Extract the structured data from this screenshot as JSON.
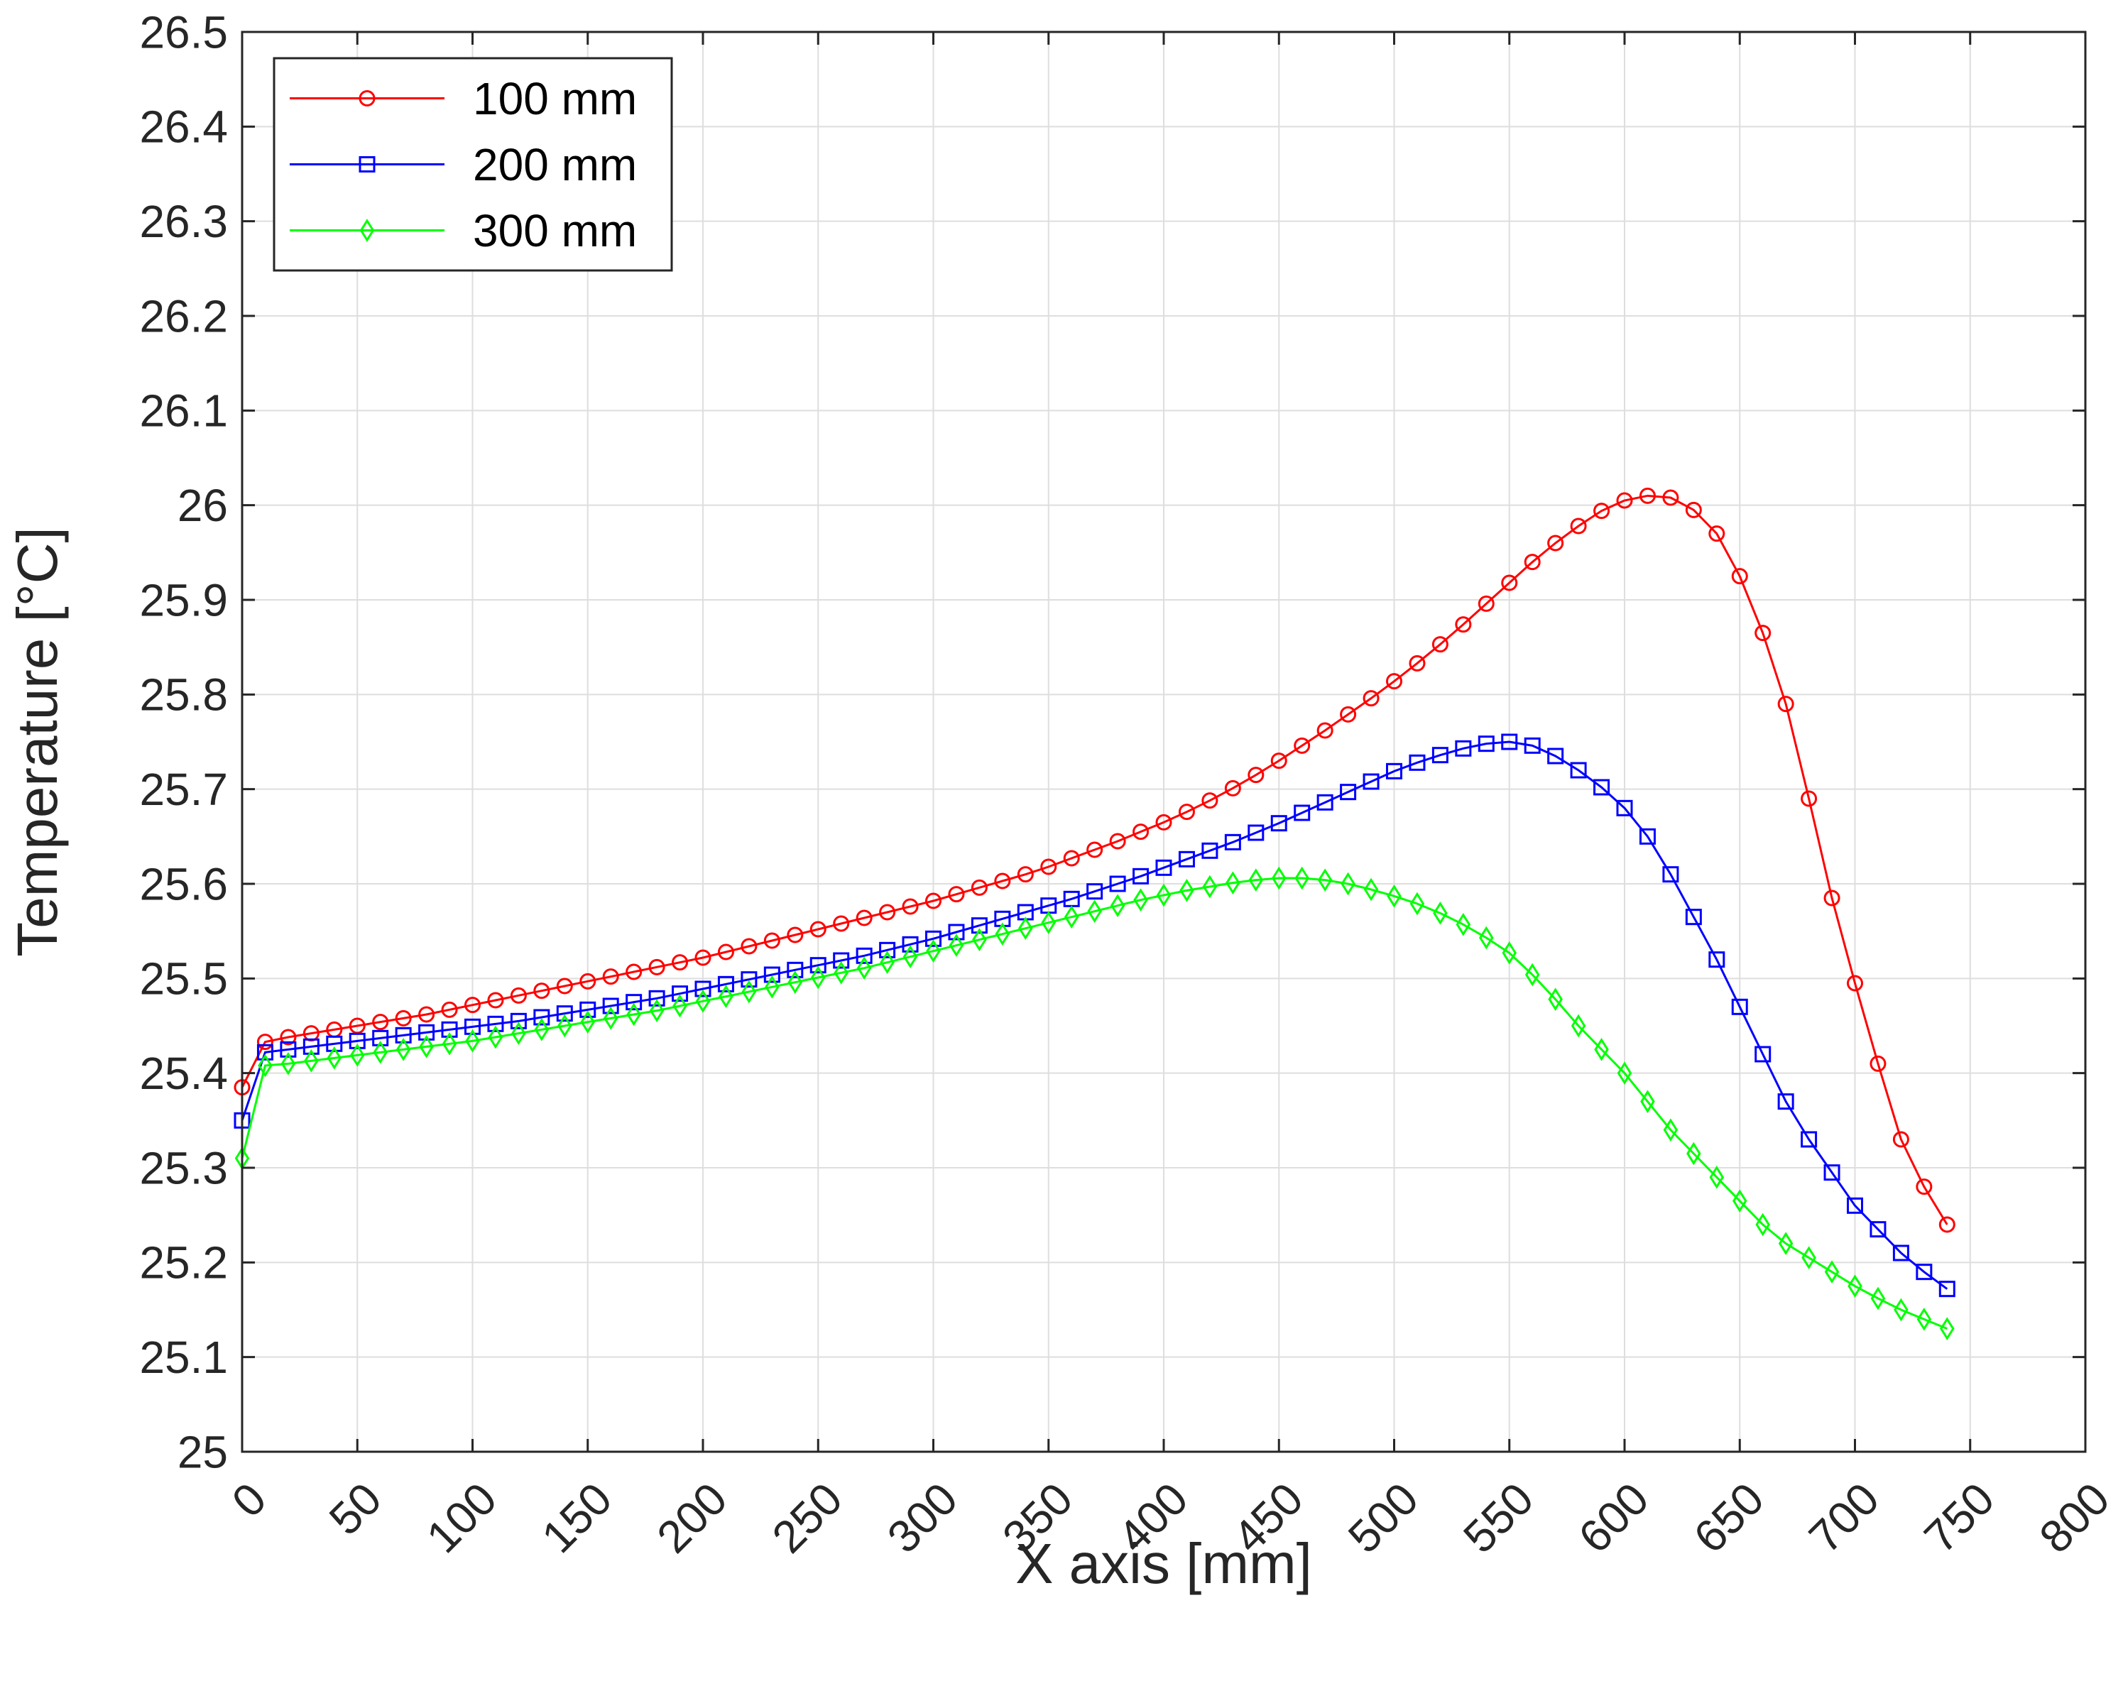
{
  "chart_data": {
    "type": "line",
    "title": "",
    "xlabel": "X axis [mm]",
    "ylabel": "Temperature [°C]",
    "xlim": [
      0,
      800
    ],
    "ylim": [
      25,
      26.5
    ],
    "xticks": [
      0,
      50,
      100,
      150,
      200,
      250,
      300,
      350,
      400,
      450,
      500,
      550,
      600,
      650,
      700,
      750,
      800
    ],
    "yticks": [
      25,
      25.1,
      25.2,
      25.3,
      25.4,
      25.5,
      25.6,
      25.7,
      25.8,
      25.9,
      26,
      26.1,
      26.2,
      26.3,
      26.4,
      26.5
    ],
    "grid": true,
    "legend_position": "top-left",
    "x": [
      0,
      10,
      20,
      30,
      40,
      50,
      60,
      70,
      80,
      90,
      100,
      110,
      120,
      130,
      140,
      150,
      160,
      170,
      180,
      190,
      200,
      210,
      220,
      230,
      240,
      250,
      260,
      270,
      280,
      290,
      300,
      310,
      320,
      330,
      340,
      350,
      360,
      370,
      380,
      390,
      400,
      410,
      420,
      430,
      440,
      450,
      460,
      470,
      480,
      490,
      500,
      510,
      520,
      530,
      540,
      550,
      560,
      570,
      580,
      590,
      600,
      610,
      620,
      630,
      640,
      650,
      660,
      670,
      680,
      690,
      700,
      710,
      720,
      730,
      740
    ],
    "series": [
      {
        "name": "100 mm",
        "color": "#ff0000",
        "marker": "circle",
        "values": [
          25.385,
          25.433,
          25.438,
          25.442,
          25.446,
          25.45,
          25.454,
          25.458,
          25.462,
          25.467,
          25.472,
          25.477,
          25.482,
          25.487,
          25.492,
          25.497,
          25.502,
          25.507,
          25.512,
          25.517,
          25.522,
          25.528,
          25.534,
          25.54,
          25.546,
          25.552,
          25.558,
          25.564,
          25.57,
          25.576,
          25.582,
          25.589,
          25.596,
          25.603,
          25.61,
          25.618,
          25.627,
          25.636,
          25.645,
          25.655,
          25.665,
          25.676,
          25.688,
          25.701,
          25.715,
          25.73,
          25.746,
          25.762,
          25.779,
          25.796,
          25.814,
          25.833,
          25.853,
          25.874,
          25.896,
          25.918,
          25.94,
          25.96,
          25.978,
          25.994,
          26.005,
          26.01,
          26.008,
          25.995,
          25.97,
          25.925,
          25.865,
          25.79,
          25.69,
          25.585,
          25.495,
          25.41,
          25.33,
          25.28,
          25.24
        ]
      },
      {
        "name": "200 mm",
        "color": "#0000ff",
        "marker": "square",
        "values": [
          25.35,
          25.422,
          25.425,
          25.428,
          25.431,
          25.434,
          25.437,
          25.44,
          25.443,
          25.446,
          25.449,
          25.452,
          25.455,
          25.459,
          25.463,
          25.467,
          25.471,
          25.475,
          25.479,
          25.484,
          25.489,
          25.494,
          25.499,
          25.504,
          25.509,
          25.514,
          25.519,
          25.524,
          25.53,
          25.536,
          25.542,
          25.549,
          25.556,
          25.563,
          25.57,
          25.577,
          25.584,
          25.592,
          25.6,
          25.608,
          25.617,
          25.626,
          25.635,
          25.644,
          25.654,
          25.664,
          25.675,
          25.686,
          25.697,
          25.708,
          25.719,
          25.728,
          25.736,
          25.743,
          25.748,
          25.75,
          25.746,
          25.735,
          25.72,
          25.702,
          25.68,
          25.65,
          25.61,
          25.565,
          25.52,
          25.47,
          25.42,
          25.37,
          25.33,
          25.295,
          25.26,
          25.235,
          25.21,
          25.19,
          25.172
        ]
      },
      {
        "name": "300 mm",
        "color": "#00ff00",
        "marker": "diamond",
        "values": [
          25.31,
          25.408,
          25.41,
          25.413,
          25.416,
          25.419,
          25.422,
          25.425,
          25.428,
          25.431,
          25.434,
          25.438,
          25.442,
          25.446,
          25.45,
          25.454,
          25.458,
          25.462,
          25.466,
          25.471,
          25.476,
          25.481,
          25.486,
          25.491,
          25.496,
          25.501,
          25.506,
          25.511,
          25.517,
          25.523,
          25.529,
          25.535,
          25.541,
          25.547,
          25.553,
          25.559,
          25.565,
          25.571,
          25.577,
          25.583,
          25.588,
          25.593,
          25.597,
          25.601,
          25.604,
          25.606,
          25.606,
          25.604,
          25.6,
          25.594,
          25.587,
          25.579,
          25.569,
          25.557,
          25.543,
          25.527,
          25.504,
          25.478,
          25.45,
          25.425,
          25.4,
          25.37,
          25.34,
          25.315,
          25.29,
          25.265,
          25.24,
          25.22,
          25.205,
          25.19,
          25.175,
          25.162,
          25.15,
          25.14,
          25.13
        ]
      }
    ]
  }
}
